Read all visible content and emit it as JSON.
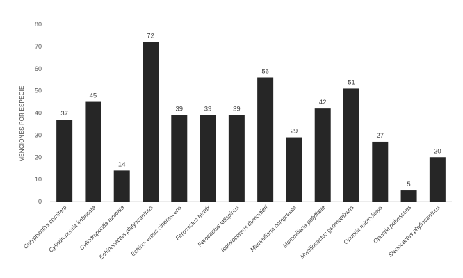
{
  "chart_data": {
    "type": "bar",
    "title": "",
    "xlabel": "",
    "ylabel": "MENCIONES POR ESPECIE",
    "ylim": [
      0,
      80
    ],
    "yticks": [
      0,
      10,
      20,
      30,
      40,
      50,
      60,
      70,
      80
    ],
    "grid": false,
    "categories": [
      "Coryphantha cornifera",
      "Cylindropuntia imbricata",
      "Cylindropuntia tunicata",
      "Echinocactus platyacanthus",
      "Echinocereus cinerascens",
      "Ferocactus histrix",
      "Ferocactus latispinus",
      "Isolatocereus dumortieri",
      "Mammillaria compressa",
      "Mammillaria polythele",
      "Myrtillocactus geometrizans",
      "Opuntia microdasys",
      "Opuntia pubescens",
      "Stenocactus phyllacanthus"
    ],
    "values": [
      37,
      45,
      14,
      72,
      39,
      39,
      39,
      56,
      29,
      42,
      51,
      27,
      5,
      20
    ],
    "bar_color": "#262626"
  }
}
